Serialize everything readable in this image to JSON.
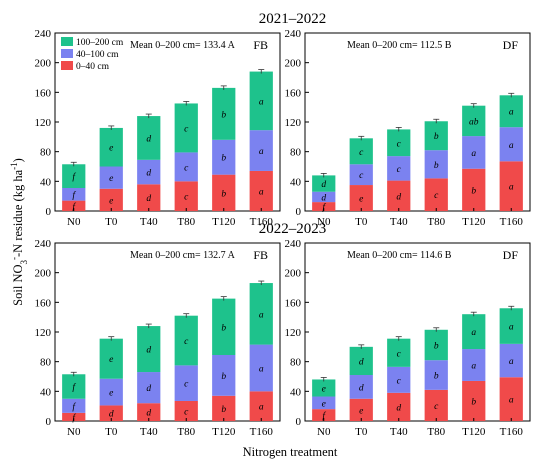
{
  "colors": {
    "top": "#1ec28c",
    "mid": "#7b82f0",
    "bottom": "#f04a4a",
    "axis": "#000000"
  },
  "chart_data": [
    {
      "type": "bar",
      "stacked": true,
      "period": "2021–2022",
      "panel_label": "FB",
      "mean_text": "Mean 0–200 cm= 133.4 A",
      "categories": [
        "N0",
        "T0",
        "T40",
        "T80",
        "T120",
        "T160"
      ],
      "ylim": [
        0,
        240
      ],
      "yticks": [
        0,
        40,
        80,
        120,
        160,
        200,
        240
      ],
      "series": [
        {
          "name": "0–40 cm",
          "values": [
            14,
            30,
            36,
            40,
            49,
            54
          ],
          "letters": [
            "f",
            "e",
            "d",
            "c",
            "b",
            "a"
          ]
        },
        {
          "name": "40–100 cm",
          "values": [
            17,
            30,
            33,
            39,
            47,
            55
          ],
          "letters": [
            "f",
            "e",
            "d",
            "c",
            "b",
            "a"
          ]
        },
        {
          "name": "100–200 cm",
          "values": [
            32,
            52,
            59,
            66,
            70,
            79
          ],
          "letters": [
            "f",
            "e",
            "d",
            "c",
            "b",
            "a"
          ]
        }
      ]
    },
    {
      "type": "bar",
      "stacked": true,
      "period": "2021–2022",
      "panel_label": "DF",
      "mean_text": "Mean 0–200 cm= 112.5 B",
      "categories": [
        "N0",
        "T0",
        "T40",
        "T80",
        "T120",
        "T160"
      ],
      "ylim": [
        0,
        240
      ],
      "yticks": [
        0,
        40,
        80,
        120,
        160,
        200,
        240
      ],
      "series": [
        {
          "name": "0–40 cm",
          "values": [
            12,
            35,
            41,
            44,
            57,
            67
          ],
          "letters": [
            "f",
            "e",
            "d",
            "c",
            "b",
            "a"
          ]
        },
        {
          "name": "40–100 cm",
          "values": [
            14,
            28,
            33,
            38,
            44,
            46
          ],
          "letters": [
            "d",
            "c",
            "c",
            "b",
            "a",
            "a"
          ]
        },
        {
          "name": "100–200 cm",
          "values": [
            22,
            35,
            36,
            39,
            41,
            43
          ],
          "letters": [
            "d",
            "c",
            "c",
            "b",
            "ab",
            "a"
          ]
        }
      ]
    },
    {
      "type": "bar",
      "stacked": true,
      "period": "2022–2023",
      "panel_label": "FB",
      "mean_text": "Mean 0–200 cm= 132.7 A",
      "categories": [
        "N0",
        "T0",
        "T40",
        "T80",
        "T120",
        "T160"
      ],
      "ylim": [
        0,
        240
      ],
      "yticks": [
        0,
        40,
        80,
        120,
        160,
        200,
        240
      ],
      "series": [
        {
          "name": "0–40 cm",
          "values": [
            11,
            21,
            24,
            27,
            34,
            40
          ],
          "letters": [
            "f",
            "d",
            "d",
            "c",
            "b",
            "a"
          ]
        },
        {
          "name": "40–100 cm",
          "values": [
            19,
            36,
            42,
            48,
            55,
            63
          ],
          "letters": [
            "f",
            "e",
            "d",
            "c",
            "b",
            "a"
          ]
        },
        {
          "name": "100–200 cm",
          "values": [
            33,
            54,
            62,
            67,
            76,
            83
          ],
          "letters": [
            "f",
            "e",
            "d",
            "c",
            "b",
            "a"
          ]
        }
      ]
    },
    {
      "type": "bar",
      "stacked": true,
      "period": "2022–2023",
      "panel_label": "DF",
      "mean_text": "Mean 0–200 cm= 114.6 B",
      "categories": [
        "N0",
        "T0",
        "T40",
        "T80",
        "T120",
        "T160"
      ],
      "ylim": [
        0,
        240
      ],
      "yticks": [
        0,
        40,
        80,
        120,
        160,
        200,
        240
      ],
      "series": [
        {
          "name": "0–40 cm",
          "values": [
            16,
            30,
            38,
            42,
            54,
            59
          ],
          "letters": [
            "f",
            "e",
            "d",
            "c",
            "b",
            "a"
          ]
        },
        {
          "name": "40–100 cm",
          "values": [
            17,
            32,
            35,
            40,
            43,
            45
          ],
          "letters": [
            "e",
            "d",
            "c",
            "b",
            "a",
            "a"
          ]
        },
        {
          "name": "100–200 cm",
          "values": [
            23,
            38,
            38,
            41,
            47,
            48
          ],
          "letters": [
            "e",
            "d",
            "c",
            "b",
            "a",
            "a"
          ]
        }
      ]
    }
  ],
  "legend": [
    "100–200 cm",
    "40–100 cm",
    "0–40 cm"
  ],
  "ylabel_main": "Soil NO",
  "ylabel_sub": "3",
  "ylabel_sup": "-",
  "ylabel_rest": "-N residue (kg ha",
  "ylabel_sup2": "-1",
  "ylabel_end": ")",
  "xlabel": "Nitrogen treatment"
}
